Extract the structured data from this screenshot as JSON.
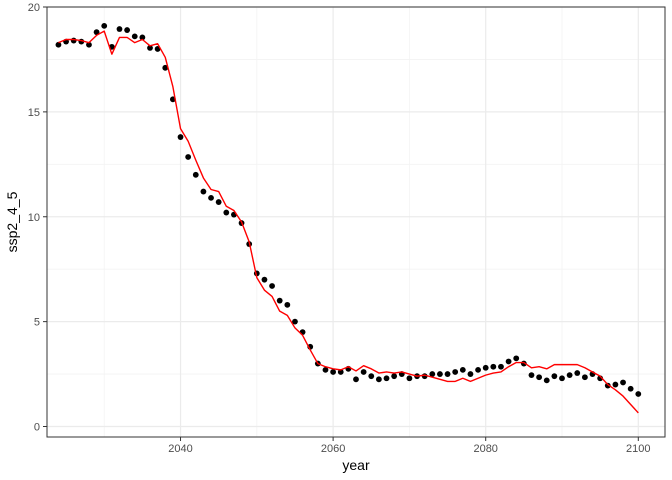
{
  "chart_data": {
    "type": "scatter",
    "title": "",
    "xlabel": "year",
    "ylabel": "ssp2_4_5",
    "xlim": [
      2022.5,
      2103.5
    ],
    "ylim": [
      -0.5,
      20
    ],
    "grid": true,
    "legend": "none",
    "x_ticks": [
      2040,
      2060,
      2080,
      2100
    ],
    "y_ticks": [
      0,
      5,
      10,
      15,
      20
    ],
    "series": [
      {
        "type": "scatter",
        "color": "#000000",
        "points": [
          [
            2024,
            18.2
          ],
          [
            2025,
            18.35
          ],
          [
            2026,
            18.4
          ],
          [
            2027,
            18.35
          ],
          [
            2028,
            18.2
          ],
          [
            2029,
            18.8
          ],
          [
            2030,
            19.1
          ],
          [
            2031,
            18.1
          ],
          [
            2032,
            18.95
          ],
          [
            2033,
            18.9
          ],
          [
            2034,
            18.6
          ],
          [
            2035,
            18.55
          ],
          [
            2036,
            18.05
          ],
          [
            2037,
            18.0
          ],
          [
            2038,
            17.1
          ],
          [
            2039,
            15.6
          ],
          [
            2040,
            13.8
          ],
          [
            2041,
            12.85
          ],
          [
            2042,
            12.0
          ],
          [
            2043,
            11.2
          ],
          [
            2044,
            10.9
          ],
          [
            2045,
            10.7
          ],
          [
            2046,
            10.2
          ],
          [
            2047,
            10.1
          ],
          [
            2048,
            9.7
          ],
          [
            2049,
            8.7
          ],
          [
            2050,
            7.3
          ],
          [
            2051,
            7.0
          ],
          [
            2052,
            6.7
          ],
          [
            2053,
            6.0
          ],
          [
            2054,
            5.8
          ],
          [
            2055,
            5.0
          ],
          [
            2056,
            4.5
          ],
          [
            2057,
            3.8
          ],
          [
            2058,
            3.0
          ],
          [
            2059,
            2.7
          ],
          [
            2060,
            2.6
          ],
          [
            2061,
            2.6
          ],
          [
            2062,
            2.75
          ],
          [
            2063,
            2.25
          ],
          [
            2064,
            2.6
          ],
          [
            2065,
            2.4
          ],
          [
            2066,
            2.25
          ],
          [
            2067,
            2.3
          ],
          [
            2068,
            2.4
          ],
          [
            2069,
            2.5
          ],
          [
            2070,
            2.3
          ],
          [
            2071,
            2.4
          ],
          [
            2072,
            2.4
          ],
          [
            2073,
            2.5
          ],
          [
            2074,
            2.5
          ],
          [
            2075,
            2.5
          ],
          [
            2076,
            2.6
          ],
          [
            2077,
            2.7
          ],
          [
            2078,
            2.5
          ],
          [
            2079,
            2.7
          ],
          [
            2080,
            2.8
          ],
          [
            2081,
            2.85
          ],
          [
            2082,
            2.85
          ],
          [
            2083,
            3.1
          ],
          [
            2084,
            3.25
          ],
          [
            2085,
            3.0
          ],
          [
            2086,
            2.45
          ],
          [
            2087,
            2.35
          ],
          [
            2088,
            2.2
          ],
          [
            2089,
            2.4
          ],
          [
            2090,
            2.3
          ],
          [
            2091,
            2.45
          ],
          [
            2092,
            2.55
          ],
          [
            2093,
            2.35
          ],
          [
            2094,
            2.5
          ],
          [
            2095,
            2.3
          ],
          [
            2096,
            1.95
          ],
          [
            2097,
            2.0
          ],
          [
            2098,
            2.1
          ],
          [
            2099,
            1.8
          ],
          [
            2100,
            1.55
          ]
        ]
      },
      {
        "type": "line",
        "color": "#ff0000",
        "points": [
          [
            2024,
            18.3
          ],
          [
            2025,
            18.45
          ],
          [
            2026,
            18.45
          ],
          [
            2027,
            18.4
          ],
          [
            2028,
            18.3
          ],
          [
            2029,
            18.65
          ],
          [
            2030,
            18.85
          ],
          [
            2031,
            17.75
          ],
          [
            2032,
            18.55
          ],
          [
            2033,
            18.55
          ],
          [
            2034,
            18.3
          ],
          [
            2035,
            18.45
          ],
          [
            2036,
            18.15
          ],
          [
            2037,
            18.25
          ],
          [
            2038,
            17.6
          ],
          [
            2039,
            16.2
          ],
          [
            2040,
            14.2
          ],
          [
            2041,
            13.6
          ],
          [
            2042,
            12.7
          ],
          [
            2043,
            11.85
          ],
          [
            2044,
            11.3
          ],
          [
            2045,
            11.2
          ],
          [
            2046,
            10.5
          ],
          [
            2047,
            10.3
          ],
          [
            2048,
            9.75
          ],
          [
            2049,
            8.8
          ],
          [
            2050,
            7.1
          ],
          [
            2051,
            6.5
          ],
          [
            2052,
            6.2
          ],
          [
            2053,
            5.5
          ],
          [
            2054,
            5.3
          ],
          [
            2055,
            4.7
          ],
          [
            2056,
            4.35
          ],
          [
            2057,
            3.65
          ],
          [
            2058,
            3.0
          ],
          [
            2059,
            2.85
          ],
          [
            2060,
            2.75
          ],
          [
            2061,
            2.7
          ],
          [
            2062,
            2.85
          ],
          [
            2063,
            2.65
          ],
          [
            2064,
            2.9
          ],
          [
            2065,
            2.75
          ],
          [
            2066,
            2.55
          ],
          [
            2067,
            2.6
          ],
          [
            2068,
            2.55
          ],
          [
            2069,
            2.6
          ],
          [
            2070,
            2.5
          ],
          [
            2071,
            2.4
          ],
          [
            2072,
            2.45
          ],
          [
            2073,
            2.35
          ],
          [
            2074,
            2.25
          ],
          [
            2075,
            2.15
          ],
          [
            2076,
            2.15
          ],
          [
            2077,
            2.3
          ],
          [
            2078,
            2.15
          ],
          [
            2079,
            2.3
          ],
          [
            2080,
            2.45
          ],
          [
            2081,
            2.55
          ],
          [
            2082,
            2.6
          ],
          [
            2083,
            2.85
          ],
          [
            2084,
            3.05
          ],
          [
            2085,
            3.05
          ],
          [
            2086,
            2.8
          ],
          [
            2087,
            2.85
          ],
          [
            2088,
            2.75
          ],
          [
            2089,
            2.95
          ],
          [
            2090,
            2.95
          ],
          [
            2091,
            2.95
          ],
          [
            2092,
            2.95
          ],
          [
            2093,
            2.8
          ],
          [
            2094,
            2.6
          ],
          [
            2095,
            2.4
          ],
          [
            2096,
            2.0
          ],
          [
            2097,
            1.75
          ],
          [
            2098,
            1.45
          ],
          [
            2099,
            1.05
          ],
          [
            2100,
            0.65
          ]
        ]
      }
    ]
  }
}
